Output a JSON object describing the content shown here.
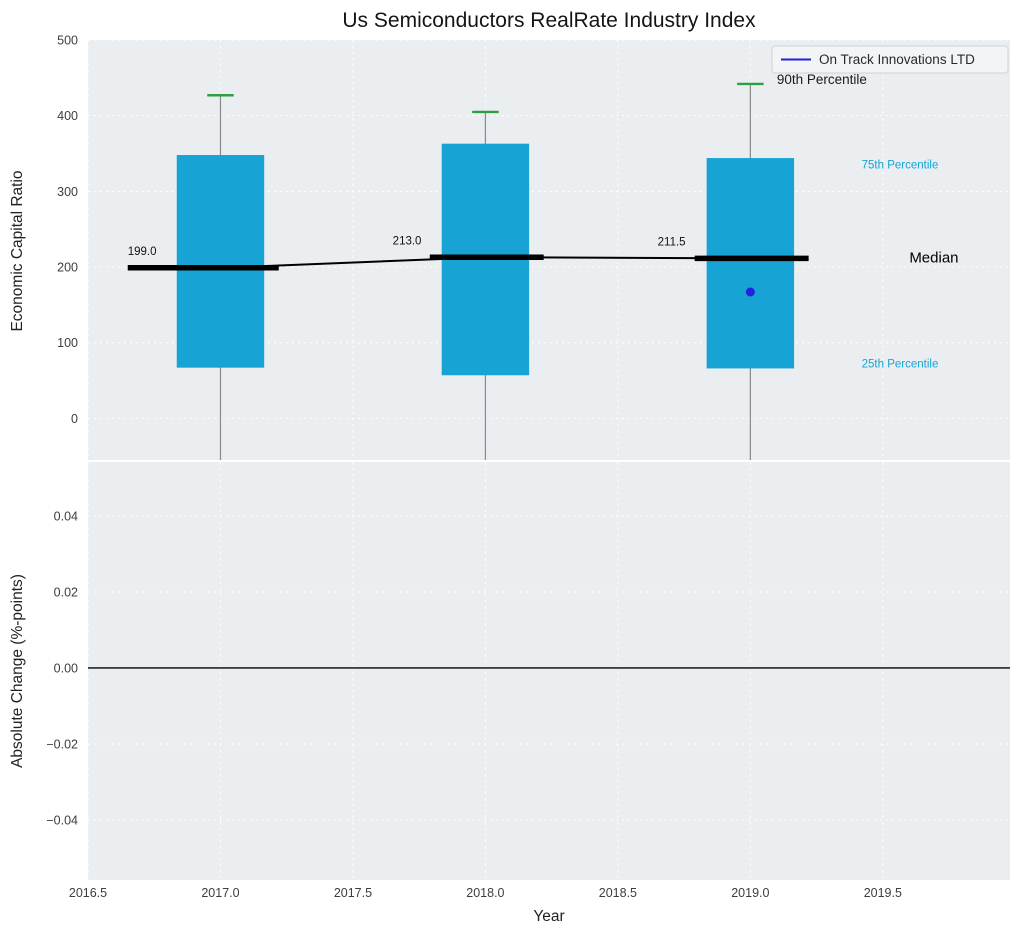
{
  "figure": {
    "title": "Us Semiconductors RealRate Industry Index",
    "background": "#ffffff",
    "panel_background": "#eaeef1",
    "grid_color": "#ffffff"
  },
  "legend": {
    "label": "On Track Innovations LTD",
    "line_color": "#2222dd"
  },
  "chart_data": [
    {
      "type": "boxplot",
      "panel": "top",
      "title": "Us Semiconductors RealRate Industry Index",
      "ylabel": "Economic Capital Ratio",
      "ylim": [
        -55,
        500
      ],
      "yticks": [
        0,
        100,
        200,
        300,
        400,
        500
      ],
      "xlim": [
        2016.5,
        2019.98
      ],
      "xticks": [
        2016.5,
        2017.0,
        2017.5,
        2018.0,
        2018.5,
        2019.0,
        2019.5
      ],
      "grid": true,
      "legend_position": "upper right",
      "colors": {
        "box_fill": "#17a3d4",
        "percentile_cap": "#2f9e41",
        "whisker": "#8a8a8a",
        "median": "#000000",
        "company_point": "#2222dd"
      },
      "boxes": [
        {
          "year": 2017,
          "p25": 67,
          "median": 199.0,
          "p75": 348,
          "p90": 427,
          "median_label": "199.0"
        },
        {
          "year": 2018,
          "p25": 57,
          "median": 213.0,
          "p75": 363,
          "p90": 405,
          "median_label": "213.0"
        },
        {
          "year": 2019,
          "p25": 66,
          "median": 211.5,
          "p75": 344,
          "p90": 442,
          "median_label": "211.5"
        }
      ],
      "median_trend": [
        [
          2017,
          199.0
        ],
        [
          2018,
          213.0
        ],
        [
          2019,
          211.5
        ]
      ],
      "company_points": [
        {
          "year": 2019,
          "value": 167,
          "series": "On Track Innovations LTD"
        }
      ],
      "annotations": [
        {
          "text": "90th Percentile",
          "x": 2019.1,
          "y": 442,
          "color": "#1a1a1a",
          "size": 13.5
        },
        {
          "text": "75th Percentile",
          "x": 2019.42,
          "y": 330,
          "color": "#17a3d4",
          "size": 11.5
        },
        {
          "text": "Median",
          "x": 2019.6,
          "y": 206,
          "color": "#000000",
          "size": 15
        },
        {
          "text": "25th Percentile",
          "x": 2019.42,
          "y": 67,
          "color": "#17a3d4",
          "size": 11.5
        }
      ]
    },
    {
      "type": "line",
      "panel": "bottom",
      "ylabel": "Absolute Change (%-points)",
      "xlabel": "Year",
      "ylim": [
        -0.0558,
        0.0542
      ],
      "yticks": [
        -0.04,
        -0.02,
        0,
        0.02,
        0.04
      ],
      "xticks": [
        2016.5,
        2017.0,
        2017.5,
        2018.0,
        2018.5,
        2019.0,
        2019.5
      ],
      "grid": true,
      "zero_line": true,
      "series": []
    }
  ]
}
